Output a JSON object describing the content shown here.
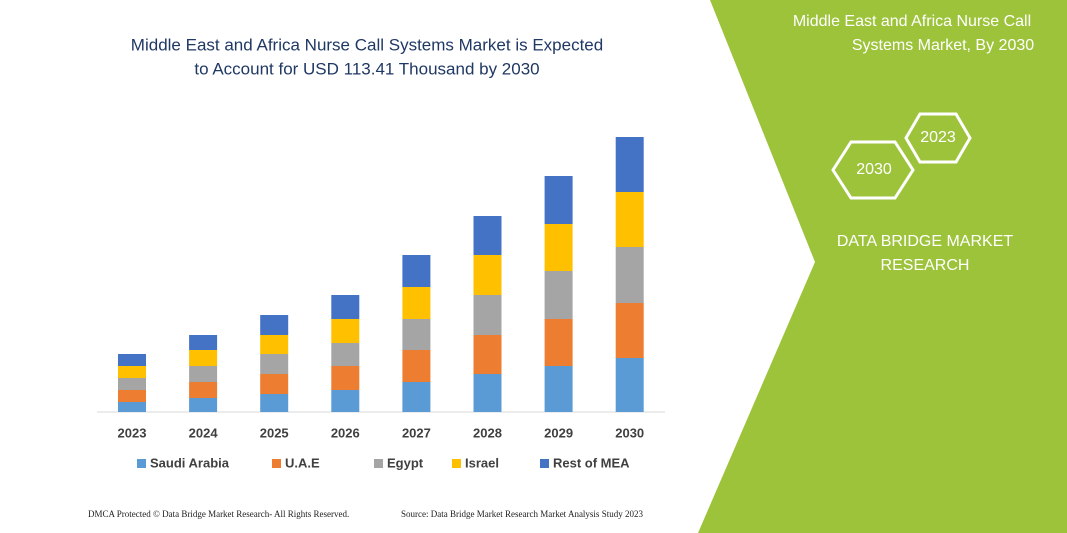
{
  "chart_data": {
    "type": "bar",
    "stacked": true,
    "title": [
      "Middle East and Africa Nurse Call Systems Market is Expected",
      "to Account for USD 113.41 Thousand by 2030"
    ],
    "categories": [
      "2023",
      "2024",
      "2025",
      "2026",
      "2027",
      "2028",
      "2029",
      "2030"
    ],
    "series": [
      {
        "name": "Saudi Arabia",
        "color": "#5b9bd5",
        "values": [
          10,
          14,
          18,
          22,
          30,
          38,
          46,
          54
        ]
      },
      {
        "name": "U.A.E",
        "color": "#ed7d31",
        "values": [
          12,
          16,
          20,
          24,
          32,
          39,
          47,
          55
        ]
      },
      {
        "name": "Egypt",
        "color": "#a5a5a5",
        "values": [
          12,
          16,
          20,
          23,
          31,
          40,
          48,
          56
        ]
      },
      {
        "name": "Israel",
        "color": "#ffc000",
        "values": [
          12,
          16,
          19,
          24,
          32,
          40,
          47,
          55
        ]
      },
      {
        "name": "Rest of MEA",
        "color": "#4472c4",
        "values": [
          12,
          15,
          20,
          24,
          32,
          39,
          48,
          55
        ]
      }
    ]
  },
  "panel": {
    "title": [
      "Middle East and Africa Nurse Call",
      "Systems Market, By 2030"
    ],
    "hex_back": "2023",
    "hex_front": "2030",
    "brand": [
      "DATA BRIDGE MARKET",
      "RESEARCH"
    ]
  },
  "footer": {
    "left": "DMCA Protected © Data Bridge Market Research-  All Rights Reserved.",
    "right": "Source: Data Bridge Market Research  Market Analysis Study 2023"
  }
}
